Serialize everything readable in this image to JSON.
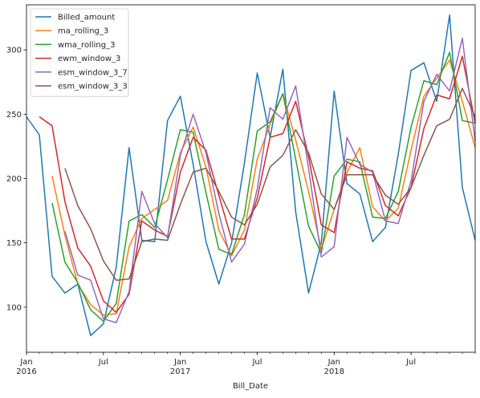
{
  "chart_data": {
    "type": "line",
    "xlabel": "Bill_Date",
    "ylabel": "",
    "x": [
      "2016-01",
      "2016-02",
      "2016-03",
      "2016-04",
      "2016-05",
      "2016-06",
      "2016-07",
      "2016-08",
      "2016-09",
      "2016-10",
      "2016-11",
      "2016-12",
      "2017-01",
      "2017-02",
      "2017-03",
      "2017-04",
      "2017-05",
      "2017-06",
      "2017-07",
      "2017-08",
      "2017-09",
      "2017-10",
      "2017-11",
      "2017-12",
      "2018-01",
      "2018-02",
      "2018-03",
      "2018-04",
      "2018-05",
      "2018-06",
      "2018-07",
      "2018-08",
      "2018-09",
      "2018-10",
      "2018-11",
      "2018-12"
    ],
    "x_ticks": [
      {
        "x": "2016-01",
        "line1": "Jan",
        "line2": "2016"
      },
      {
        "x": "2016-07",
        "line1": "Jul",
        "line2": ""
      },
      {
        "x": "2017-01",
        "line1": "Jan",
        "line2": "2017"
      },
      {
        "x": "2017-07",
        "line1": "Jul",
        "line2": ""
      },
      {
        "x": "2018-01",
        "line1": "Jan",
        "line2": "2018"
      },
      {
        "x": "2018-07",
        "line1": "Jul",
        "line2": ""
      }
    ],
    "y_ticks": [
      100,
      150,
      200,
      250,
      300
    ],
    "ylim": [
      65,
      335
    ],
    "grid": false,
    "legend_position": "top-left",
    "series": [
      {
        "name": "Billed_amount",
        "color": "#1f77b4",
        "values": [
          248,
          234,
          124,
          111,
          118,
          78,
          87,
          131,
          224,
          152,
          151,
          245,
          264,
          211,
          151,
          118,
          150,
          212,
          282,
          232,
          285,
          174,
          111,
          150,
          268,
          196,
          188,
          151,
          162,
          219,
          284,
          290,
          260,
          327,
          193,
          152
        ]
      },
      {
        "name": "ma_rolling_3",
        "color": "#ff7f0e",
        "values": [
          null,
          null,
          202,
          156,
          118,
          102,
          94,
          95,
          147,
          169,
          176,
          183,
          220,
          240,
          209,
          160,
          140,
          160,
          215,
          242,
          266,
          230,
          190,
          145,
          176,
          205,
          224,
          178,
          167,
          177,
          222,
          264,
          278,
          292,
          260,
          224
        ]
      },
      {
        "name": "wma_rolling_3",
        "color": "#2ca02c",
        "values": [
          null,
          null,
          181,
          135,
          119,
          98,
          89,
          103,
          167,
          172,
          162,
          199,
          238,
          236,
          189,
          145,
          141,
          172,
          237,
          244,
          266,
          215,
          163,
          142,
          202,
          215,
          213,
          170,
          169,
          190,
          240,
          276,
          273,
          298,
          245,
          243
        ]
      },
      {
        "name": "ewm_window_3",
        "color": "#d62728",
        "values": [
          null,
          248,
          241,
          182,
          146,
          132,
          105,
          96,
          110,
          167,
          160,
          155,
          205,
          232,
          222,
          187,
          153,
          153,
          185,
          232,
          235,
          260,
          217,
          164,
          158,
          213,
          208,
          206,
          179,
          171,
          193,
          239,
          265,
          262,
          295,
          243
        ]
      },
      {
        "name": "esm_window_3_7",
        "color": "#9467bd",
        "values": [
          null,
          null,
          null,
          159,
          125,
          121,
          91,
          88,
          112,
          190,
          165,
          154,
          218,
          250,
          220,
          173,
          135,
          149,
          192,
          255,
          246,
          272,
          208,
          139,
          147,
          232,
          211,
          205,
          167,
          165,
          198,
          260,
          281,
          268,
          309,
          229
        ]
      },
      {
        "name": "esm_window_3_3",
        "color": "#8c564b",
        "values": [
          null,
          null,
          null,
          208,
          179,
          161,
          136,
          121,
          122,
          151,
          153,
          152,
          180,
          205,
          208,
          190,
          170,
          164,
          180,
          209,
          218,
          238,
          220,
          188,
          176,
          203,
          203,
          203,
          187,
          180,
          193,
          218,
          241,
          246,
          270,
          248
        ]
      }
    ]
  }
}
